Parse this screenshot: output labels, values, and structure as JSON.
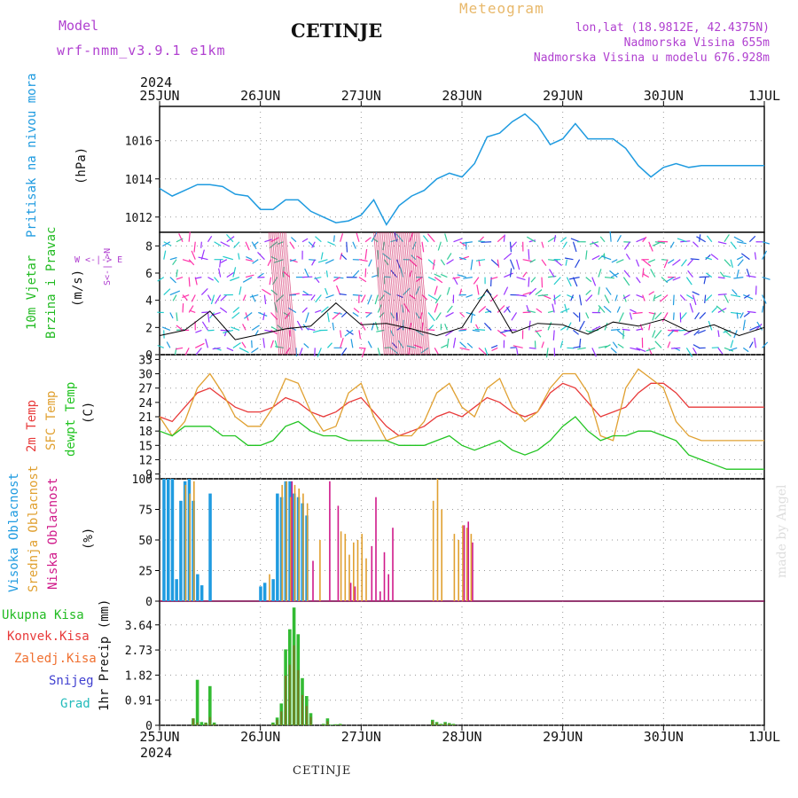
{
  "header": {
    "model_label": "Model",
    "model_name": "wrf-nmm_v3.9.1 e1km",
    "title": "CETINJE",
    "meteogram": "Meteogram",
    "lonlat": "lon,lat (18.9812E, 42.4375N)",
    "elev": "Nadmorska Visina 655m",
    "elev_model": "Nadmorska Visina u modelu 676.928m",
    "year_top": "2024",
    "year_bottom": "2024",
    "footer": "CETINJE",
    "credit": "made by Angel"
  },
  "colors": {
    "pressure": "#1f9be0",
    "wind_title": "#22bb22",
    "temp2m": "#e83a3a",
    "sfc": "#e0a030",
    "dew": "#22c422",
    "high": "#1f9be0",
    "mid": "#e0a030",
    "low": "#d01a8a",
    "header_purple": "#b040d0",
    "meteogram": "#e8b86a"
  },
  "dates": [
    "25JUN",
    "26JUN",
    "27JUN",
    "28JUN",
    "29JUN",
    "30JUN",
    "1JUL"
  ],
  "panels": {
    "pressure": {
      "label1": "Pritisak na nivou mora",
      "label2": "(hPa)",
      "ticks": [
        "1012",
        "1014",
        "1016"
      ]
    },
    "wind": {
      "label1": "10m Vjetar",
      "label2": "Brzina i Pravac",
      "label3": "(m/s)",
      "ticks": [
        "0",
        "2",
        "4",
        "6",
        "8"
      ],
      "compass": "W <-|-> E",
      "compass_v": "S<-|->N"
    },
    "temp": {
      "label1": "2m Temp",
      "label2": "SFC Temp",
      "label3": "dewpt Temp",
      "label4": "(C)",
      "ticks": [
        "9",
        "12",
        "15",
        "18",
        "21",
        "24",
        "27",
        "30",
        "33"
      ]
    },
    "cloud": {
      "label1": "Visoka Oblacnost",
      "label2": "Srednja Oblacnost",
      "label3": "Niska Oblacnost",
      "label4": "(%)",
      "ticks": [
        "0",
        "25",
        "50",
        "75",
        "100"
      ]
    },
    "precip": {
      "labels": [
        "Ukupna Kisa",
        "Konvek.Kisa",
        "Zaledj.Kisa",
        "Snijeg",
        "Grad"
      ],
      "unit": "1hr Precip (mm)",
      "ticks": [
        "0",
        "0.91",
        "1.82",
        "2.73",
        "3.64"
      ]
    }
  },
  "chart_data": [
    {
      "type": "line",
      "title": "Pritisak na nivou mora",
      "ylabel": "(hPa)",
      "ylim": [
        1011.2,
        1017.8
      ],
      "x": [
        0,
        3,
        6,
        9,
        12,
        15,
        18,
        21,
        24,
        27,
        30,
        33,
        36,
        39,
        42,
        45,
        48,
        51,
        54,
        57,
        60,
        63,
        66,
        69,
        72,
        75,
        78,
        81,
        84,
        87,
        90,
        93,
        96,
        99,
        102,
        105,
        108,
        111,
        114,
        117,
        120,
        123,
        126,
        129,
        132,
        135,
        138,
        141,
        144
      ],
      "series": [
        {
          "name": "Pritisak na nivou mora",
          "values": [
            1013.5,
            1013.1,
            1013.4,
            1013.7,
            1013.7,
            1013.6,
            1013.2,
            1013.1,
            1012.4,
            1012.4,
            1012.9,
            1012.9,
            1012.3,
            1012.0,
            1011.7,
            1011.8,
            1012.1,
            1012.9,
            1011.6,
            1012.6,
            1013.1,
            1013.4,
            1014.0,
            1014.3,
            1014.1,
            1014.8,
            1016.2,
            1016.4,
            1017.0,
            1017.4,
            1016.8,
            1015.8,
            1016.1,
            1016.9,
            1016.1,
            1016.1,
            1016.1,
            1015.6,
            1014.7,
            1014.1,
            1014.6,
            1014.8,
            1014.6,
            1014.7,
            1014.7,
            1014.7,
            1014.7,
            1014.7,
            1014.7
          ]
        }
      ]
    },
    {
      "type": "line",
      "title": "10m Vjetar Brzina i Pravac",
      "ylabel": "(m/s)",
      "ylim": [
        0,
        9
      ],
      "x": [
        0,
        6,
        12,
        18,
        24,
        30,
        36,
        42,
        48,
        54,
        60,
        66,
        72,
        78,
        84,
        90,
        96,
        102,
        108,
        114,
        120,
        126,
        132,
        138,
        144
      ],
      "series": [
        {
          "name": "10m Vjetar",
          "values": [
            1.4,
            1.8,
            3.2,
            1.1,
            1.5,
            1.9,
            2.1,
            3.8,
            2.2,
            2.3,
            1.9,
            1.4,
            2.0,
            4.8,
            1.6,
            2.3,
            2.2,
            1.5,
            2.4,
            2.1,
            2.6,
            1.7,
            2.2,
            1.4,
            2.0
          ]
        }
      ]
    },
    {
      "type": "line",
      "title": "Temperature",
      "ylabel": "(C)",
      "ylim": [
        8,
        34
      ],
      "x": [
        0,
        3,
        6,
        9,
        12,
        15,
        18,
        21,
        24,
        27,
        30,
        33,
        36,
        39,
        42,
        45,
        48,
        51,
        54,
        57,
        60,
        63,
        66,
        69,
        72,
        75,
        78,
        81,
        84,
        87,
        90,
        93,
        96,
        99,
        102,
        105,
        108,
        111,
        114,
        117,
        120,
        123,
        126,
        129,
        132,
        135,
        138,
        141,
        144
      ],
      "series": [
        {
          "name": "2m Temp",
          "values": [
            21,
            20,
            23,
            26,
            27,
            25,
            23,
            22,
            22,
            23,
            25,
            24,
            22,
            21,
            22,
            24,
            25,
            22,
            19,
            17,
            18,
            19,
            21,
            22,
            21,
            23,
            25,
            24,
            22,
            21,
            22,
            26,
            28,
            27,
            24,
            21,
            22,
            23,
            26,
            28,
            28,
            26,
            23,
            23,
            23,
            23,
            23,
            23,
            23
          ]
        },
        {
          "name": "SFC Temp",
          "values": [
            21,
            17,
            20,
            27,
            30,
            26,
            21,
            19,
            19,
            23,
            29,
            28,
            22,
            18,
            19,
            26,
            28,
            21,
            16,
            17,
            17,
            20,
            26,
            28,
            23,
            21,
            27,
            29,
            23,
            20,
            22,
            27,
            30,
            30,
            26,
            17,
            16,
            27,
            31,
            29,
            27,
            20,
            17,
            16,
            16,
            16,
            16,
            16,
            16
          ]
        },
        {
          "name": "dewpt Temp",
          "values": [
            18,
            17,
            19,
            19,
            19,
            17,
            17,
            15,
            15,
            16,
            19,
            20,
            18,
            17,
            17,
            16,
            16,
            16,
            16,
            15,
            15,
            15,
            16,
            17,
            15,
            14,
            15,
            16,
            14,
            13,
            14,
            16,
            19,
            21,
            18,
            16,
            17,
            17,
            18,
            18,
            17,
            16,
            13,
            12,
            11,
            10,
            10,
            10,
            10
          ]
        }
      ]
    },
    {
      "type": "bar",
      "title": "Oblacnost",
      "ylabel": "(%)",
      "ylim": [
        0,
        100
      ],
      "x": [
        1,
        2,
        3,
        4,
        5,
        6,
        7,
        8,
        9,
        10,
        11,
        12,
        24,
        25,
        26,
        27,
        28,
        29,
        30,
        31,
        32,
        33,
        34,
        35,
        36,
        38,
        40,
        42,
        43,
        44,
        45,
        46,
        47,
        48,
        49,
        50,
        51,
        52,
        53,
        54,
        55,
        56,
        58,
        65,
        66,
        67,
        70,
        71,
        72,
        73,
        74,
        75
      ],
      "series": [
        {
          "name": "Visoka Oblacnost",
          "values": [
            100,
            100,
            100,
            18,
            82,
            98,
            100,
            82,
            22,
            13,
            0,
            88,
            12,
            15,
            0,
            18,
            88,
            85,
            98,
            98,
            88,
            85,
            80,
            70,
            0,
            0,
            0,
            0,
            0,
            0,
            0,
            0,
            0,
            0,
            0,
            0,
            0,
            0,
            0,
            0,
            0,
            0,
            0,
            0,
            0,
            0,
            0,
            0,
            0,
            0,
            0,
            0
          ]
        },
        {
          "name": "Srednja Oblacnost",
          "values": [
            0,
            0,
            0,
            0,
            0,
            95,
            88,
            98,
            0,
            0,
            0,
            0,
            0,
            0,
            22,
            0,
            0,
            95,
            98,
            85,
            95,
            92,
            88,
            80,
            0,
            50,
            0,
            0,
            57,
            55,
            38,
            48,
            50,
            55,
            35,
            0,
            0,
            0,
            0,
            0,
            0,
            0,
            0,
            82,
            100,
            75,
            55,
            50,
            62,
            60,
            55,
            0
          ]
        },
        {
          "name": "Niska Oblacnost",
          "values": [
            0,
            0,
            0,
            0,
            0,
            0,
            0,
            0,
            0,
            0,
            0,
            0,
            0,
            0,
            0,
            0,
            0,
            0,
            0,
            98,
            0,
            0,
            0,
            0,
            33,
            0,
            98,
            78,
            0,
            0,
            15,
            12,
            0,
            0,
            0,
            45,
            85,
            8,
            40,
            22,
            60,
            0,
            0,
            0,
            0,
            0,
            0,
            0,
            62,
            65,
            48,
            0
          ]
        }
      ]
    },
    {
      "type": "bar",
      "title": "1hr Precip",
      "ylabel": "1hr Precip (mm)",
      "ylim": [
        0,
        4.5
      ],
      "x": [
        8,
        9,
        10,
        11,
        12,
        13,
        14,
        15,
        16,
        27,
        28,
        29,
        30,
        31,
        32,
        33,
        34,
        35,
        36,
        37,
        38,
        39,
        40,
        41,
        42,
        43,
        65,
        66,
        67,
        68,
        69,
        70
      ],
      "series": [
        {
          "name": "Ukupna Kisa",
          "values": [
            0.25,
            1.65,
            0.12,
            0.1,
            1.42,
            0.1,
            0,
            0,
            0,
            0.1,
            0.28,
            0.79,
            2.75,
            3.48,
            4.27,
            3.3,
            1.71,
            1.06,
            0.44,
            0,
            0,
            0.05,
            0.25,
            0.02,
            0.04,
            0.05,
            0.2,
            0.12,
            0.05,
            0.12,
            0.08,
            0.05
          ]
        },
        {
          "name": "Konvek.Kisa",
          "values": [
            0.25,
            0.1,
            0,
            0.08,
            0.3,
            0.05,
            0,
            0,
            0,
            0.05,
            0.2,
            0.5,
            1.8,
            2.2,
            2.9,
            2.0,
            1.1,
            0.7,
            0.3,
            0,
            0,
            0.03,
            0.15,
            0,
            0.02,
            0.03,
            0.15,
            0.08,
            0.03,
            0.08,
            0.05,
            0.03
          ]
        },
        {
          "name": "Zaledj.Kisa",
          "values": [
            0,
            0,
            0,
            0,
            0,
            0,
            0,
            0,
            0,
            0,
            0,
            0,
            0,
            0,
            0,
            0,
            0,
            0,
            0,
            0,
            0,
            0,
            0,
            0,
            0,
            0,
            0,
            0,
            0,
            0,
            0,
            0
          ]
        },
        {
          "name": "Snijeg",
          "values": [
            0,
            0,
            0,
            0,
            0,
            0,
            0,
            0,
            0,
            0,
            0,
            0,
            0,
            0,
            0,
            0,
            0,
            0,
            0,
            0,
            0,
            0,
            0,
            0,
            0,
            0,
            0,
            0,
            0,
            0,
            0,
            0
          ]
        },
        {
          "name": "Grad",
          "values": [
            0,
            0,
            0,
            0,
            0,
            0,
            0,
            0,
            0,
            0,
            0,
            0,
            0,
            0,
            0,
            0,
            0,
            0,
            0,
            0,
            0,
            0,
            0,
            0,
            0,
            0,
            0,
            0,
            0,
            0,
            0,
            0
          ]
        }
      ]
    }
  ]
}
